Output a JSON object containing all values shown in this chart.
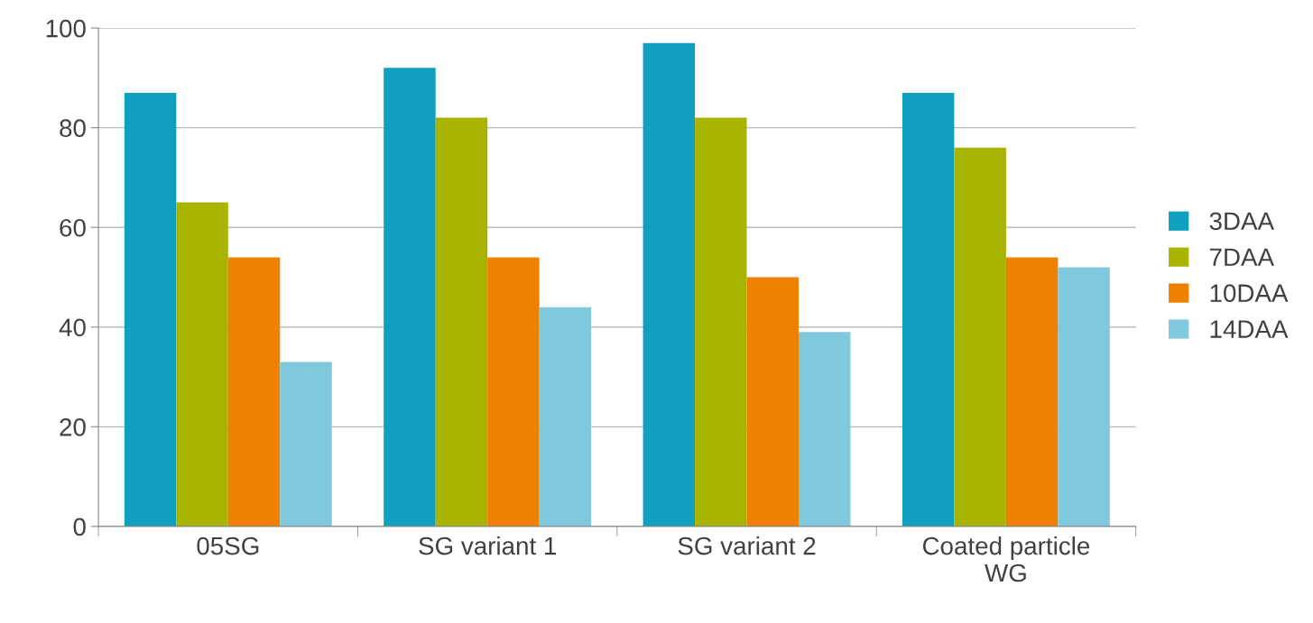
{
  "chart_data": {
    "type": "bar",
    "categories": [
      "05SG",
      "SG variant 1",
      "SG variant 2",
      "Coated particle\nWG"
    ],
    "series": [
      {
        "name": "3DAA",
        "color": "#0f9fbf",
        "values": [
          87,
          92,
          97,
          87
        ]
      },
      {
        "name": "7DAA",
        "color": "#a8b400",
        "values": [
          65,
          82,
          82,
          76
        ]
      },
      {
        "name": "10DAA",
        "color": "#f08000",
        "values": [
          54,
          54,
          50,
          54
        ]
      },
      {
        "name": "14DAA",
        "color": "#80c8dc",
        "values": [
          33,
          44,
          39,
          52
        ]
      }
    ],
    "ylim": [
      0,
      100
    ],
    "yticks": [
      0,
      20,
      40,
      60,
      80,
      100
    ],
    "grid": "y",
    "legend": "right"
  }
}
